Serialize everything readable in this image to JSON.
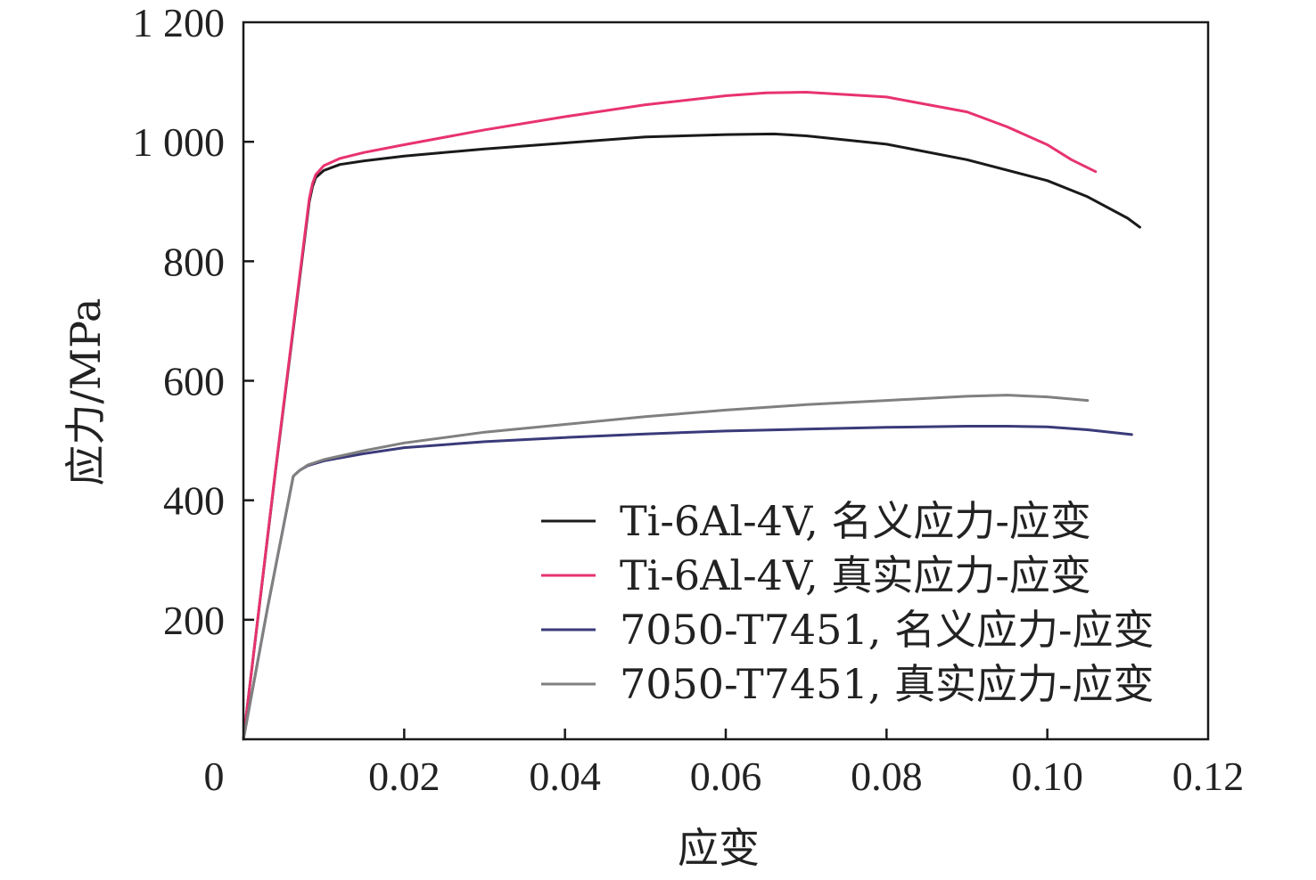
{
  "chart_data": {
    "type": "line",
    "xlabel": "应变",
    "ylabel": "应力/MPa",
    "xlim": [
      0,
      0.12
    ],
    "ylim": [
      0,
      1200
    ],
    "x_ticks": [
      0.02,
      0.04,
      0.06,
      0.08,
      0.1,
      0.12
    ],
    "x_tick_labels": [
      "0.02",
      "0.04",
      "0.06",
      "0.08",
      "0.10",
      "0.12"
    ],
    "y_ticks": [
      200,
      400,
      600,
      800,
      1000,
      1200
    ],
    "y_tick_labels": [
      "200",
      "400",
      "600",
      "800",
      "1 000",
      "1 200"
    ],
    "origin_label": "0",
    "legend_position": "bottom-right",
    "series": [
      {
        "name": "Ti-6Al-4V, 名义应力-应变",
        "color": "#1a1a1a",
        "x": [
          0,
          0.004,
          0.0082,
          0.0086,
          0.009,
          0.01,
          0.012,
          0.015,
          0.02,
          0.03,
          0.04,
          0.05,
          0.06,
          0.066,
          0.07,
          0.08,
          0.09,
          0.1,
          0.105,
          0.11,
          0.1115
        ],
        "y": [
          0,
          450,
          900,
          925,
          940,
          952,
          962,
          968,
          976,
          988,
          998,
          1008,
          1012,
          1013,
          1010,
          996,
          970,
          935,
          908,
          872,
          857
        ]
      },
      {
        "name": "Ti-6Al-4V, 真实应力-应变",
        "color": "#e8336e",
        "x": [
          0,
          0.004,
          0.0082,
          0.0086,
          0.009,
          0.01,
          0.012,
          0.015,
          0.02,
          0.03,
          0.04,
          0.05,
          0.06,
          0.065,
          0.07,
          0.08,
          0.09,
          0.095,
          0.1,
          0.103,
          0.106
        ],
        "y": [
          0,
          452,
          905,
          930,
          945,
          960,
          972,
          982,
          995,
          1020,
          1042,
          1062,
          1077,
          1082,
          1083,
          1075,
          1050,
          1025,
          995,
          970,
          950
        ]
      },
      {
        "name": "7050-T7451, 名义应力-应变",
        "color": "#3a3a7a",
        "x": [
          0,
          0.003,
          0.0062,
          0.0065,
          0.007,
          0.008,
          0.01,
          0.015,
          0.02,
          0.03,
          0.04,
          0.05,
          0.06,
          0.07,
          0.08,
          0.09,
          0.095,
          0.1,
          0.105,
          0.1105
        ],
        "y": [
          0,
          220,
          440,
          444,
          450,
          458,
          466,
          478,
          488,
          498,
          505,
          511,
          516,
          519,
          522,
          524,
          524,
          523,
          518,
          510
        ]
      },
      {
        "name": "7050-T7451, 真实应力-应变",
        "color": "#808080",
        "x": [
          0,
          0.003,
          0.0062,
          0.0065,
          0.007,
          0.008,
          0.01,
          0.015,
          0.02,
          0.03,
          0.04,
          0.05,
          0.06,
          0.07,
          0.08,
          0.09,
          0.095,
          0.1,
          0.105
        ],
        "y": [
          0,
          220,
          440,
          444,
          450,
          459,
          468,
          483,
          496,
          514,
          527,
          540,
          551,
          560,
          567,
          574,
          576,
          573,
          567
        ]
      }
    ]
  }
}
